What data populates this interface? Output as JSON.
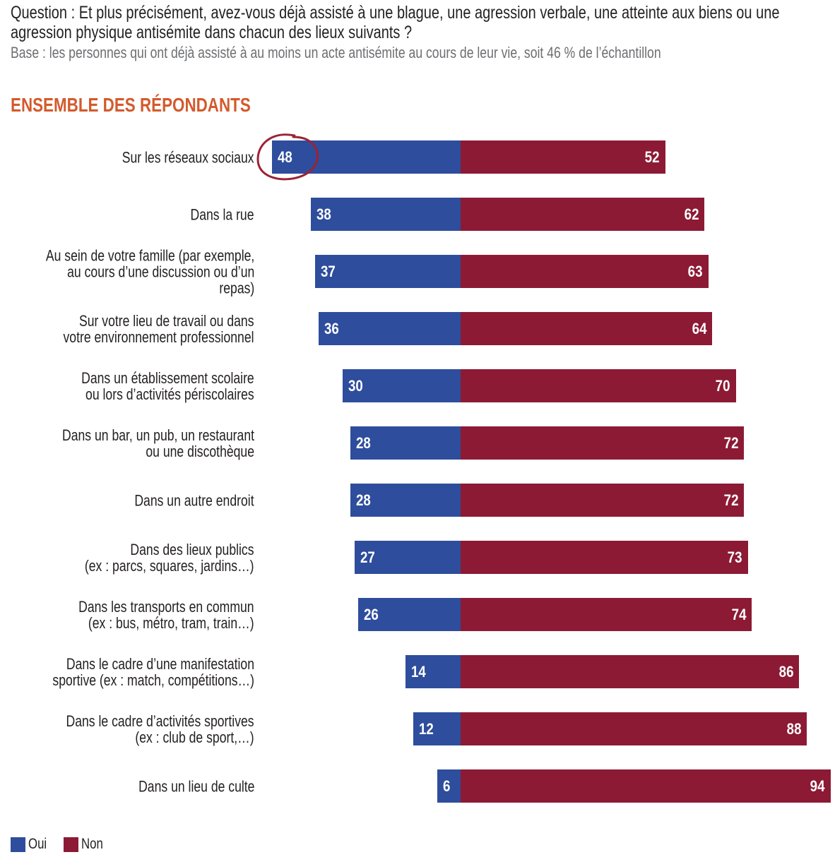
{
  "question": "Question : Et plus précisément, avez-vous déjà assisté à une blague, une agression verbale, une atteinte aux biens ou une agression physique antisémite dans chacun des lieux suivants ?",
  "base": "Base : les personnes qui ont déjà assisté à au moins un acte antisémite au cours de leur vie, soit 46 % de l’échantillon",
  "section_title": "ENSEMBLE DES RÉPONDANTS",
  "colors": {
    "oui": "#2e4d9c",
    "non": "#8c1a34",
    "section": "#d35a2c"
  },
  "chart_data": {
    "type": "bar",
    "orientation": "horizontal-diverging",
    "categories": [
      "Sur les réseaux sociaux",
      "Dans la rue",
      "Au sein de votre famille (par exemple,\nau cours d’une discussion ou d’un\nrepas)",
      "Sur votre lieu de travail ou dans\nvotre environnement professionnel",
      "Dans un établissement scolaire\nou lors d’activités périscolaires",
      "Dans un bar, un pub, un restaurant\nou une discothèque",
      "Dans un autre endroit",
      "Dans des lieux publics\n(ex : parcs, squares, jardins…)",
      "Dans les transports en commun\n(ex : bus, métro, tram, train…)",
      "Dans le cadre d’une manifestation\nsportive (ex : match, compétitions…)",
      "Dans le cadre d’activités sportives\n(ex : club de sport,…)",
      "Dans un lieu de culte"
    ],
    "series": [
      {
        "name": "Oui",
        "values": [
          48,
          38,
          37,
          36,
          30,
          28,
          28,
          27,
          26,
          14,
          12,
          6
        ]
      },
      {
        "name": "Non",
        "values": [
          52,
          62,
          63,
          64,
          70,
          72,
          72,
          73,
          74,
          86,
          88,
          94
        ]
      }
    ],
    "highlighted": "Sur les réseaux sociaux",
    "legend": "bottom-left"
  }
}
